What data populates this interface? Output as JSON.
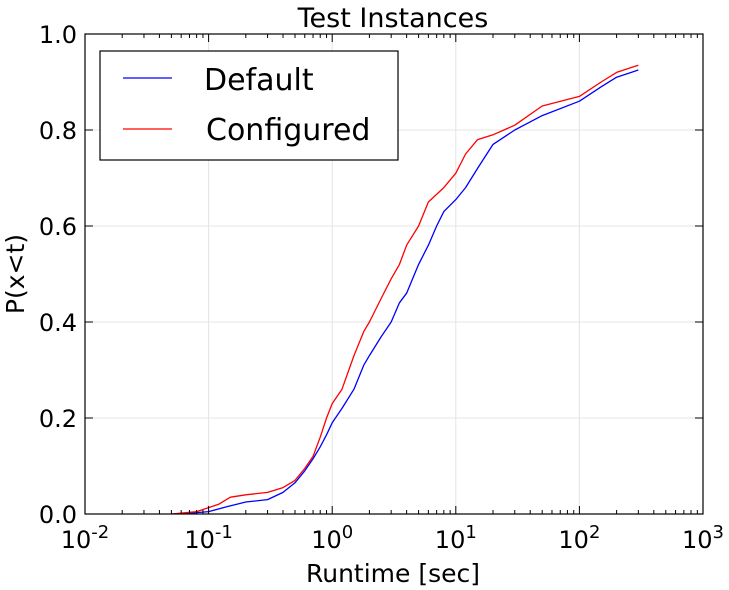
{
  "chart_data": {
    "type": "line",
    "title": "Test Instances",
    "xlabel": "Runtime [sec]",
    "ylabel": "P(x<t)",
    "x_scale": "log",
    "xlim": [
      0.01,
      1000
    ],
    "ylim": [
      0.0,
      1.0
    ],
    "grid": true,
    "legend_position": "top-left",
    "x_ticks": [
      {
        "value": 0.01,
        "base": "10",
        "exp": "-2"
      },
      {
        "value": 0.1,
        "base": "10",
        "exp": "-1"
      },
      {
        "value": 1,
        "base": "10",
        "exp": "0"
      },
      {
        "value": 10,
        "base": "10",
        "exp": "1"
      },
      {
        "value": 100,
        "base": "10",
        "exp": "2"
      },
      {
        "value": 1000,
        "base": "10",
        "exp": "3"
      }
    ],
    "y_ticks": [
      {
        "value": 0.0,
        "label": "0.0"
      },
      {
        "value": 0.2,
        "label": "0.2"
      },
      {
        "value": 0.4,
        "label": "0.4"
      },
      {
        "value": 0.6,
        "label": "0.6"
      },
      {
        "value": 0.8,
        "label": "0.8"
      },
      {
        "value": 1.0,
        "label": "1.0"
      }
    ],
    "series": [
      {
        "name": "Default",
        "color": "#0000ff",
        "points": [
          [
            0.06,
            0.0
          ],
          [
            0.1,
            0.005
          ],
          [
            0.14,
            0.015
          ],
          [
            0.2,
            0.025
          ],
          [
            0.3,
            0.03
          ],
          [
            0.4,
            0.045
          ],
          [
            0.5,
            0.065
          ],
          [
            0.6,
            0.09
          ],
          [
            0.7,
            0.115
          ],
          [
            0.8,
            0.14
          ],
          [
            0.9,
            0.165
          ],
          [
            1.0,
            0.19
          ],
          [
            1.2,
            0.22
          ],
          [
            1.5,
            0.26
          ],
          [
            1.8,
            0.31
          ],
          [
            2.0,
            0.33
          ],
          [
            2.5,
            0.37
          ],
          [
            3.0,
            0.4
          ],
          [
            3.5,
            0.44
          ],
          [
            4.0,
            0.46
          ],
          [
            5.0,
            0.52
          ],
          [
            6.0,
            0.56
          ],
          [
            7.0,
            0.6
          ],
          [
            8.0,
            0.63
          ],
          [
            10.0,
            0.655
          ],
          [
            12.0,
            0.68
          ],
          [
            15.0,
            0.72
          ],
          [
            20.0,
            0.77
          ],
          [
            30.0,
            0.8
          ],
          [
            50.0,
            0.83
          ],
          [
            100.0,
            0.86
          ],
          [
            150.0,
            0.89
          ],
          [
            200.0,
            0.91
          ],
          [
            300.0,
            0.925
          ]
        ]
      },
      {
        "name": "Configured",
        "color": "#ff0000",
        "points": [
          [
            0.05,
            0.0
          ],
          [
            0.08,
            0.005
          ],
          [
            0.12,
            0.02
          ],
          [
            0.15,
            0.035
          ],
          [
            0.2,
            0.04
          ],
          [
            0.3,
            0.045
          ],
          [
            0.4,
            0.055
          ],
          [
            0.5,
            0.07
          ],
          [
            0.6,
            0.095
          ],
          [
            0.7,
            0.12
          ],
          [
            0.8,
            0.16
          ],
          [
            0.9,
            0.2
          ],
          [
            1.0,
            0.23
          ],
          [
            1.2,
            0.26
          ],
          [
            1.5,
            0.33
          ],
          [
            1.8,
            0.38
          ],
          [
            2.0,
            0.4
          ],
          [
            2.5,
            0.45
          ],
          [
            3.0,
            0.49
          ],
          [
            3.5,
            0.52
          ],
          [
            4.0,
            0.56
          ],
          [
            5.0,
            0.6
          ],
          [
            6.0,
            0.65
          ],
          [
            8.0,
            0.68
          ],
          [
            10.0,
            0.71
          ],
          [
            12.0,
            0.75
          ],
          [
            15.0,
            0.78
          ],
          [
            20.0,
            0.79
          ],
          [
            30.0,
            0.81
          ],
          [
            50.0,
            0.85
          ],
          [
            100.0,
            0.87
          ],
          [
            150.0,
            0.9
          ],
          [
            200.0,
            0.92
          ],
          [
            300.0,
            0.935
          ]
        ]
      }
    ]
  }
}
